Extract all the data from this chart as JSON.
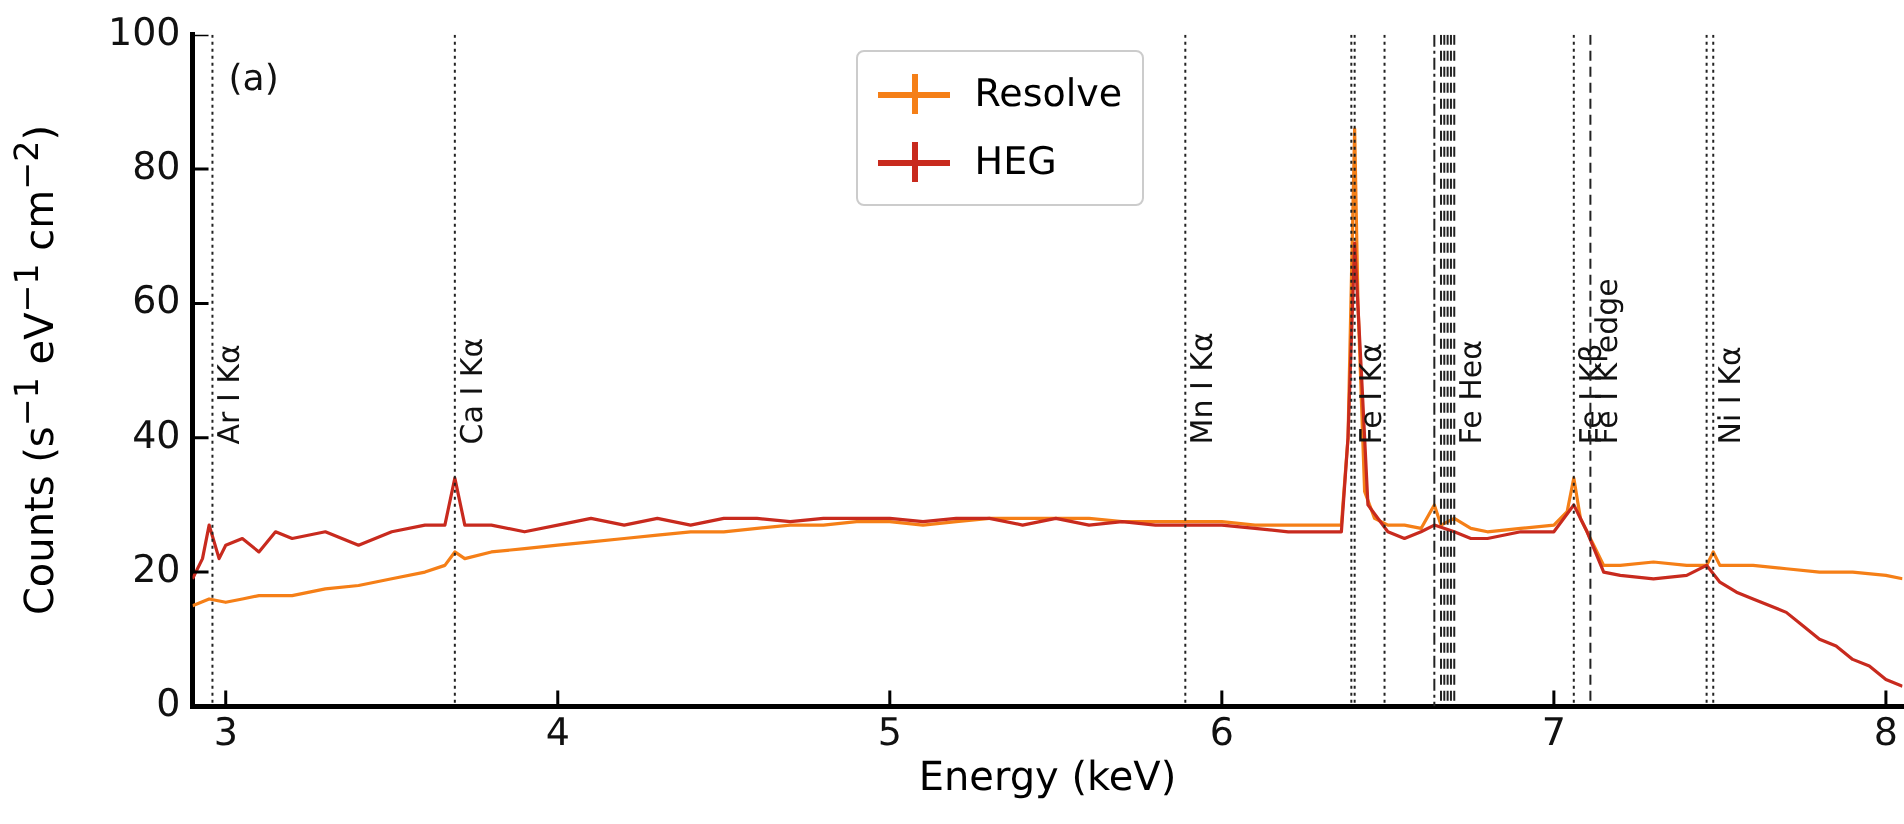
{
  "chart_data": {
    "type": "line",
    "xlabel": "Energy (keV)",
    "ylabel": "Counts (s$^{−1}$ eV$^{−1}$ cm$^{−2}$)",
    "xlim": [
      2.9,
      8.05
    ],
    "xticks": [
      3,
      4,
      5,
      6,
      7,
      8
    ],
    "ylim": [
      0,
      100
    ],
    "yticks": [
      0,
      20,
      40,
      60,
      80,
      100
    ],
    "grid": false,
    "legend": "top",
    "marker": "none",
    "line_style": "solid",
    "annotations": [
      "(a)"
    ],
    "series": [
      {
        "name": "Resolve",
        "color": "#f57f17",
        "x": [
          2.9,
          2.95,
          3.0,
          3.05,
          3.1,
          3.2,
          3.3,
          3.4,
          3.5,
          3.6,
          3.66,
          3.69,
          3.72,
          3.8,
          3.9,
          4.0,
          4.1,
          4.2,
          4.3,
          4.4,
          4.5,
          4.6,
          4.7,
          4.8,
          4.9,
          5.0,
          5.1,
          5.2,
          5.3,
          5.4,
          5.5,
          5.6,
          5.7,
          5.8,
          5.9,
          6.0,
          6.1,
          6.2,
          6.3,
          6.36,
          6.38,
          6.4,
          6.41,
          6.43,
          6.46,
          6.5,
          6.55,
          6.6,
          6.64,
          6.66,
          6.7,
          6.75,
          6.8,
          6.9,
          7.0,
          7.04,
          7.06,
          7.08,
          7.12,
          7.15,
          7.2,
          7.3,
          7.4,
          7.46,
          7.48,
          7.5,
          7.6,
          7.7,
          7.8,
          7.9,
          8.0,
          8.05
        ],
        "values": [
          15,
          16,
          15.5,
          16,
          16.5,
          16.5,
          17.5,
          18,
          19,
          20,
          21,
          23,
          22,
          23,
          23.5,
          24,
          24.5,
          25,
          25.5,
          26,
          26,
          26.5,
          27,
          27,
          27.5,
          27.5,
          27,
          27.5,
          28,
          28,
          28,
          28,
          27.5,
          27.5,
          27.5,
          27.5,
          27,
          27,
          27,
          27,
          40,
          86,
          60,
          32,
          28,
          27,
          27,
          26.5,
          30,
          27,
          28,
          26.5,
          26,
          26.5,
          27,
          29,
          34,
          28,
          24,
          21,
          21,
          21.5,
          21,
          21,
          23,
          21,
          21,
          20.5,
          20,
          20,
          19.5,
          19
        ]
      },
      {
        "name": "HEG",
        "color": "#c82a1e",
        "x": [
          2.9,
          2.93,
          2.95,
          2.98,
          3.0,
          3.05,
          3.1,
          3.15,
          3.2,
          3.3,
          3.4,
          3.5,
          3.6,
          3.66,
          3.69,
          3.72,
          3.8,
          3.9,
          4.0,
          4.1,
          4.2,
          4.3,
          4.4,
          4.5,
          4.6,
          4.7,
          4.8,
          4.9,
          5.0,
          5.1,
          5.2,
          5.3,
          5.4,
          5.5,
          5.6,
          5.7,
          5.8,
          5.9,
          6.0,
          6.1,
          6.2,
          6.3,
          6.36,
          6.38,
          6.4,
          6.42,
          6.44,
          6.5,
          6.55,
          6.6,
          6.64,
          6.7,
          6.75,
          6.8,
          6.9,
          7.0,
          7.06,
          7.1,
          7.15,
          7.2,
          7.3,
          7.4,
          7.46,
          7.5,
          7.55,
          7.6,
          7.7,
          7.75,
          7.8,
          7.85,
          7.9,
          7.95,
          8.0,
          8.05
        ],
        "values": [
          19,
          22,
          27,
          22,
          24,
          25,
          23,
          26,
          25,
          26,
          24,
          26,
          27,
          27,
          34,
          27,
          27,
          26,
          27,
          28,
          27,
          28,
          27,
          28,
          28,
          27.5,
          28,
          28,
          28,
          27.5,
          28,
          28,
          27,
          28,
          27,
          27.5,
          27,
          27,
          27,
          26.5,
          26,
          26,
          26,
          40,
          69,
          50,
          30,
          26,
          25,
          26,
          27,
          26,
          25,
          25,
          26,
          26,
          30,
          26,
          20,
          19.5,
          19,
          19.5,
          21,
          18.5,
          17,
          16,
          14,
          12,
          10,
          9,
          7,
          6,
          4,
          3
        ]
      }
    ],
    "ref_lines": [
      {
        "axis": "x",
        "value": 2.96,
        "label": "Ar I Kα",
        "line_style": "dotted"
      },
      {
        "axis": "x",
        "value": 3.69,
        "label": "Ca I Kα",
        "line_style": "dotted"
      },
      {
        "axis": "x",
        "value": 5.89,
        "label": "Mn I Kα",
        "line_style": "dotted"
      },
      {
        "axis": "x",
        "value": 6.39,
        "label": null,
        "line_style": "dotted"
      },
      {
        "axis": "x",
        "value": 6.4,
        "label": "Fe I Kα",
        "line_style": "dotted"
      },
      {
        "axis": "x",
        "value": 6.49,
        "label": null,
        "line_style": "dotted"
      },
      {
        "axis": "x",
        "value": 6.64,
        "label": null,
        "line_style": "dashdot"
      },
      {
        "axis": "x",
        "value": 6.66,
        "label": null,
        "line_style": "dashed"
      },
      {
        "axis": "x",
        "value": 6.67,
        "label": null,
        "line_style": "dashed"
      },
      {
        "axis": "x",
        "value": 6.68,
        "label": null,
        "line_style": "dashed"
      },
      {
        "axis": "x",
        "value": 6.69,
        "label": null,
        "line_style": "dashed"
      },
      {
        "axis": "x",
        "value": 6.7,
        "label": "Fe Heα",
        "line_style": "dashed"
      },
      {
        "axis": "x",
        "value": 7.06,
        "label": "Fe I Kβ",
        "line_style": "dotted"
      },
      {
        "axis": "x",
        "value": 7.11,
        "label": "Fe I K edge",
        "line_style": "dashed"
      },
      {
        "axis": "x",
        "value": 7.46,
        "label": null,
        "line_style": "dotted"
      },
      {
        "axis": "x",
        "value": 7.48,
        "label": "Ni I Kα",
        "line_style": "dotted"
      }
    ]
  }
}
